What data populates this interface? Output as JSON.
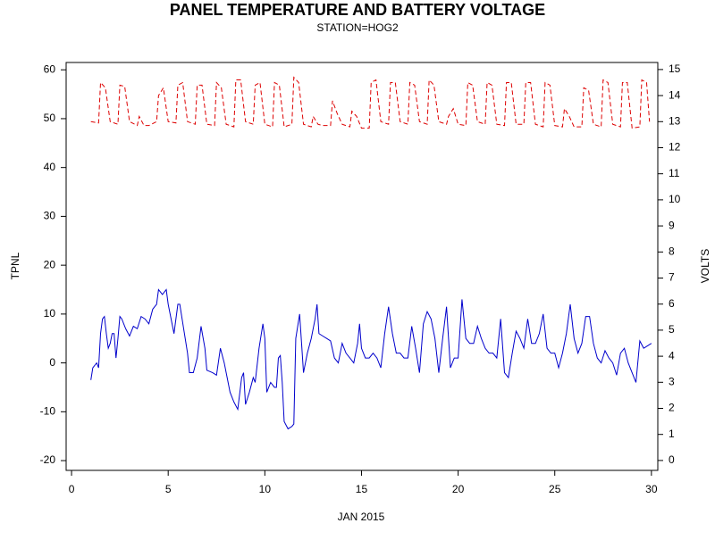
{
  "chart_data": {
    "type": "line",
    "title": "PANEL TEMPERATURE AND BATTERY VOLTAGE",
    "subtitle": "STATION=HOG2",
    "x_label": "JAN 2015",
    "y_label": "TPNL",
    "y2_label": "VOLTS",
    "xlim": [
      -0.28,
      30.33
    ],
    "xticks": [
      0,
      5,
      10,
      15,
      20,
      25,
      30
    ],
    "ylim": [
      -22,
      61.5
    ],
    "yticks": [
      -20,
      -10,
      0,
      10,
      20,
      30,
      40,
      50,
      60
    ],
    "y2lim": [
      -0.38,
      15.27
    ],
    "y2ticks": [
      0,
      1,
      2,
      3,
      4,
      5,
      6,
      7,
      8,
      9,
      10,
      11,
      12,
      13,
      14,
      15
    ],
    "series": [
      {
        "name": "TPNL",
        "color": "#0000cc",
        "dash": false,
        "axis": "y",
        "x": [
          1.0,
          1.1,
          1.3,
          1.4,
          1.5,
          1.6,
          1.7,
          1.8,
          1.9,
          2.0,
          2.1,
          2.2,
          2.3,
          2.4,
          2.5,
          2.6,
          2.8,
          3.0,
          3.2,
          3.4,
          3.6,
          3.8,
          4.0,
          4.2,
          4.4,
          4.5,
          4.7,
          4.9,
          5.0,
          5.1,
          5.3,
          5.5,
          5.6,
          5.8,
          6.0,
          6.1,
          6.3,
          6.5,
          6.7,
          6.9,
          7.0,
          7.3,
          7.5,
          7.7,
          7.9,
          8.0,
          8.2,
          8.4,
          8.6,
          8.8,
          8.9,
          9.0,
          9.2,
          9.4,
          9.5,
          9.7,
          9.9,
          10.0,
          10.1,
          10.3,
          10.5,
          10.6,
          10.7,
          10.8,
          10.9,
          11.0,
          11.2,
          11.4,
          11.5,
          11.6,
          11.8,
          11.9,
          12.0,
          12.2,
          12.4,
          12.6,
          12.7,
          12.8,
          13.0,
          13.2,
          13.4,
          13.6,
          13.8,
          14.0,
          14.2,
          14.4,
          14.6,
          14.8,
          14.9,
          15.0,
          15.2,
          15.4,
          15.6,
          15.8,
          16.0,
          16.2,
          16.4,
          16.6,
          16.8,
          17.0,
          17.2,
          17.4,
          17.6,
          17.8,
          18.0,
          18.2,
          18.4,
          18.6,
          18.8,
          19.0,
          19.2,
          19.4,
          19.6,
          19.8,
          20.0,
          20.2,
          20.4,
          20.6,
          20.8,
          21.0,
          21.2,
          21.4,
          21.6,
          21.8,
          22.0,
          22.2,
          22.4,
          22.6,
          22.8,
          23.0,
          23.2,
          23.4,
          23.6,
          23.8,
          24.0,
          24.2,
          24.4,
          24.6,
          24.8,
          25.0,
          25.2,
          25.4,
          25.6,
          25.8,
          26.0,
          26.2,
          26.4,
          26.6,
          26.8,
          27.0,
          27.2,
          27.4,
          27.6,
          27.8,
          28.0,
          28.2,
          28.4,
          28.6,
          28.8,
          29.0,
          29.2,
          29.4,
          29.6,
          29.8,
          30.0
        ],
        "values": [
          -3.5,
          -1,
          0,
          -1,
          6,
          9,
          9.5,
          6,
          3,
          4,
          6,
          6,
          1,
          5,
          9.5,
          9,
          7,
          5.5,
          7.5,
          7,
          9.5,
          9,
          8,
          11,
          12,
          15,
          14,
          15,
          12,
          10,
          6,
          12,
          12,
          7,
          2,
          -2,
          -2,
          1,
          7.5,
          3,
          -1.5,
          -2,
          -2.5,
          3,
          0,
          -2,
          -6,
          -8,
          -9.5,
          -3,
          -2,
          -8.5,
          -6,
          -3,
          -4,
          3,
          8,
          5,
          -6,
          -4,
          -5,
          -5,
          1,
          1.5,
          -4,
          -12,
          -13.5,
          -13,
          -12.5,
          5,
          10,
          4,
          -2,
          2,
          5,
          9,
          12,
          6,
          5.5,
          5,
          4.5,
          1,
          0,
          4,
          2,
          1,
          0,
          4,
          8,
          3,
          1,
          1,
          2,
          1,
          -1,
          6,
          11.5,
          6,
          2,
          2,
          1,
          1,
          7.5,
          3,
          -2,
          8,
          10.5,
          9,
          5,
          -2,
          5,
          11.5,
          -1,
          1,
          1,
          13,
          5,
          4,
          4,
          7.5,
          5,
          3,
          2,
          2,
          1,
          9,
          -2,
          -3,
          2,
          6.5,
          5,
          3,
          9,
          4,
          4,
          6,
          10,
          3,
          2,
          2,
          -1,
          2,
          6,
          12,
          5,
          2,
          4,
          9.5,
          9.5,
          4,
          1,
          0,
          2.5,
          1,
          0,
          -2.5,
          2,
          3,
          0,
          -2,
          -4,
          4.5,
          3,
          3.5,
          4
        ]
      },
      {
        "name": "VOLTS",
        "color": "#dd0000",
        "dash": true,
        "axis": "y2",
        "x": [
          1,
          1.4,
          1.5,
          1.75,
          2,
          2.4,
          2.5,
          2.75,
          3,
          3.4,
          3.5,
          3.75,
          4,
          4.4,
          4.5,
          4.75,
          5,
          5.4,
          5.5,
          5.75,
          6,
          6.4,
          6.5,
          6.75,
          7,
          7.4,
          7.5,
          7.75,
          8,
          8.4,
          8.5,
          8.75,
          9,
          9.4,
          9.5,
          9.75,
          10,
          10.4,
          10.5,
          10.75,
          11,
          11.4,
          11.5,
          11.75,
          12,
          12.4,
          12.5,
          12.75,
          13,
          13.4,
          13.5,
          13.75,
          14,
          14.4,
          14.5,
          14.75,
          15,
          15.4,
          15.5,
          15.75,
          16,
          16.4,
          16.5,
          16.75,
          17,
          17.4,
          17.5,
          17.75,
          18,
          18.4,
          18.5,
          18.75,
          19,
          19.4,
          19.5,
          19.75,
          20,
          20.4,
          20.5,
          20.75,
          21,
          21.4,
          21.5,
          21.75,
          22,
          22.4,
          22.5,
          22.75,
          23,
          23.4,
          23.5,
          23.75,
          24,
          24.4,
          24.5,
          24.75,
          25,
          25.4,
          25.5,
          25.75,
          26,
          26.4,
          26.5,
          26.75,
          27,
          27.4,
          27.5,
          27.75,
          28,
          28.4,
          28.5,
          28.75,
          29,
          29.4,
          29.5,
          29.75,
          29.9
        ],
        "values": [
          13.0,
          12.95,
          14.5,
          14.3,
          13.0,
          12.9,
          14.4,
          14.35,
          13.0,
          12.85,
          13.2,
          12.85,
          12.85,
          13.0,
          14.0,
          14.3,
          13.0,
          12.95,
          14.4,
          14.5,
          13.0,
          12.9,
          14.4,
          14.4,
          12.9,
          12.85,
          14.5,
          14.3,
          12.9,
          12.8,
          14.6,
          14.6,
          13.0,
          12.9,
          14.4,
          14.5,
          12.9,
          12.8,
          14.5,
          14.4,
          12.8,
          12.9,
          14.7,
          14.5,
          12.9,
          12.8,
          13.2,
          12.9,
          12.85,
          12.85,
          13.8,
          13.3,
          12.9,
          12.8,
          13.4,
          13.2,
          12.75,
          12.75,
          14.5,
          14.6,
          13.0,
          12.9,
          14.5,
          14.5,
          13.0,
          12.9,
          14.5,
          14.4,
          13.0,
          12.9,
          14.6,
          14.4,
          13.0,
          12.9,
          13.2,
          13.5,
          12.9,
          12.85,
          14.5,
          14.4,
          13.0,
          12.9,
          14.5,
          14.4,
          12.9,
          12.85,
          14.5,
          14.5,
          12.9,
          12.9,
          14.5,
          14.5,
          12.9,
          12.8,
          14.5,
          14.4,
          12.85,
          12.8,
          13.5,
          13.2,
          12.8,
          12.8,
          14.3,
          14.2,
          12.9,
          12.8,
          14.6,
          14.5,
          12.9,
          12.8,
          14.5,
          14.5,
          12.75,
          12.8,
          14.6,
          14.5,
          13.0
        ]
      }
    ]
  }
}
